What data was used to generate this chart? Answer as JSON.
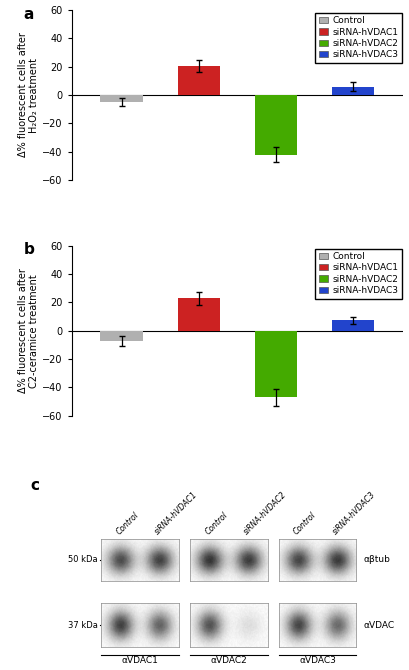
{
  "panel_a": {
    "values": [
      -5,
      20.5,
      -42,
      6
    ],
    "errors": [
      3,
      4,
      5,
      3
    ],
    "colors": [
      "#b0b0b0",
      "#cc2222",
      "#44aa00",
      "#2244cc"
    ],
    "ylabel": "Δ% fluorescent cells after\nH₂O₂ treatment",
    "ylim": [
      -60,
      60
    ],
    "yticks": [
      -60,
      -40,
      -20,
      0,
      20,
      40,
      60
    ],
    "label": "a",
    "legend_labels": [
      "Control",
      "siRNA-hVDAC1",
      "siRNA-hVDAC2",
      "siRNA-hVDAC3"
    ]
  },
  "panel_b": {
    "values": [
      -7,
      23,
      -47,
      7.5
    ],
    "errors": [
      3.5,
      4.5,
      6,
      2.5
    ],
    "colors": [
      "#b0b0b0",
      "#cc2222",
      "#44aa00",
      "#2244cc"
    ],
    "ylabel": "Δ% fluorescent cells after\nC2-ceramice treatment",
    "ylim": [
      -60,
      60
    ],
    "yticks": [
      -60,
      -40,
      -20,
      0,
      20,
      40,
      60
    ],
    "label": "b",
    "legend_labels": [
      "Control",
      "siRNA-hVDAC1",
      "siRNA-hVDAC2",
      "siRNA-hVDAC3"
    ]
  },
  "panel_c": {
    "label": "c",
    "group_labels": [
      "αVDAC1",
      "αVDAC2",
      "αVDAC3"
    ],
    "right_labels": [
      "αβtub",
      "αVDAC"
    ],
    "left_labels": [
      "50 kDa",
      "37 kDa"
    ],
    "lane_labels": [
      "Control",
      "siRNA-hVDAC1",
      "Control",
      "siRNA-hVDAC2",
      "Control",
      "siRNA-hVDAC3"
    ],
    "top_band_intensities": [
      0.75,
      0.8,
      0.85,
      0.82,
      0.78,
      0.83
    ],
    "bot_band_intensities": [
      0.8,
      0.65,
      0.72,
      0.12,
      0.78,
      0.62
    ]
  },
  "figure_bg": "#ffffff",
  "bar_width": 0.55,
  "x_positions": [
    0,
    1,
    2,
    3
  ]
}
